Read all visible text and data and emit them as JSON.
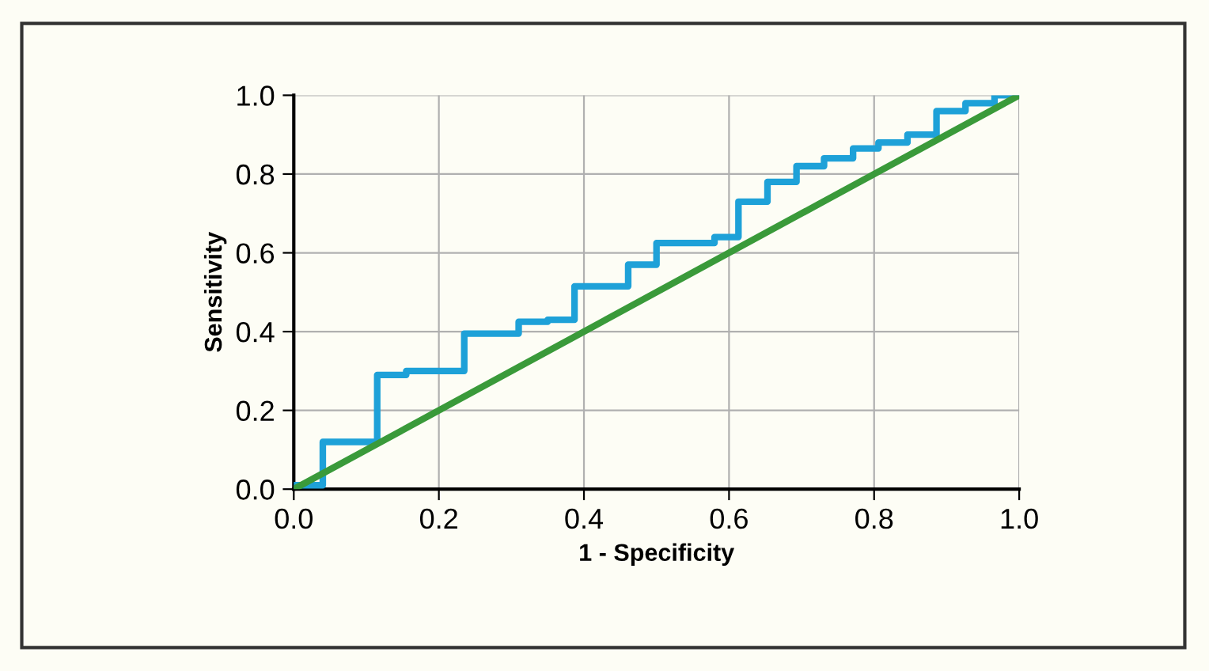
{
  "chart_data": {
    "type": "line",
    "xlabel": "1 - Specificity",
    "ylabel": "Sensitivity",
    "series": [
      {
        "type": "step",
        "color": "#1ea1d8",
        "x": [
          0,
          0.04,
          0.115,
          0.155,
          0.235,
          0.31,
          0.35,
          0.387,
          0.461,
          0.5,
          0.58,
          0.613,
          0.653,
          0.693,
          0.731,
          0.771,
          0.806,
          0.846,
          0.886,
          0.926,
          0.966,
          1.0
        ],
        "values": [
          0.01,
          0.12,
          0.29,
          0.3,
          0.395,
          0.425,
          0.43,
          0.515,
          0.57,
          0.625,
          0.64,
          0.73,
          0.78,
          0.82,
          0.84,
          0.865,
          0.88,
          0.9,
          0.96,
          0.98,
          1.0,
          1.0
        ]
      },
      {
        "color": "#3a9a3a",
        "x": [
          0,
          1.0
        ],
        "values": [
          0,
          1.0
        ]
      }
    ],
    "xlim": [
      0,
      1.0
    ],
    "ylim": [
      0,
      1.0
    ],
    "xticks": [
      {
        "value": 0,
        "label": "0.0"
      },
      0.2,
      0.4,
      0.6,
      0.8,
      {
        "value": 1.0,
        "label": "1.0"
      }
    ],
    "yticks": [
      {
        "value": 0,
        "label": "0.0"
      },
      0.2,
      0.4,
      0.6,
      0.8,
      {
        "value": 1.0,
        "label": "1.0"
      }
    ],
    "grid": true
  }
}
